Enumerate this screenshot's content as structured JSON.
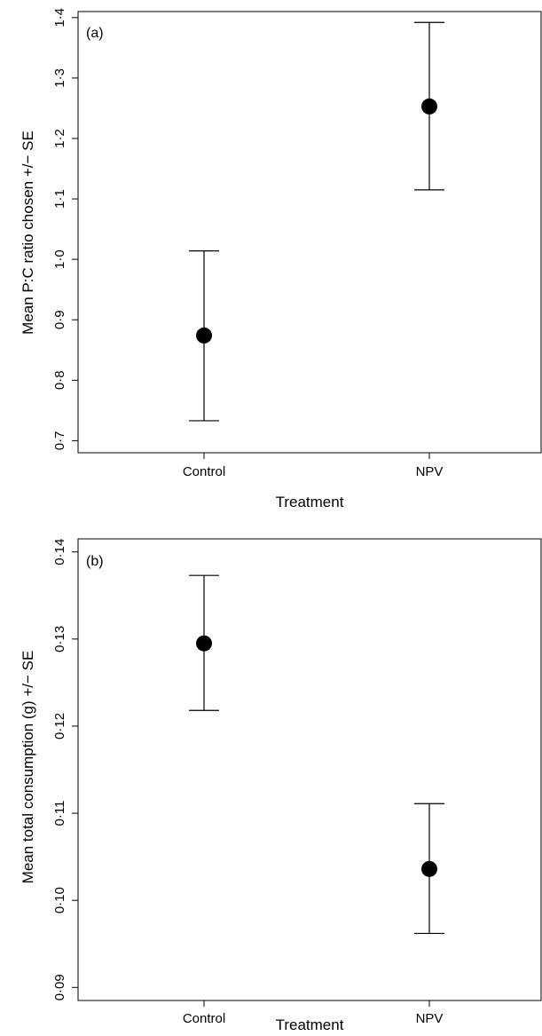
{
  "chart_data": [
    {
      "type": "scatter",
      "panel_label": "(a)",
      "categories": [
        "Control",
        "NPV"
      ],
      "values": [
        0.874,
        1.253
      ],
      "error_low": [
        0.733,
        1.115
      ],
      "error_high": [
        1.014,
        1.392
      ],
      "xlabel": "Treatment",
      "ylabel": "Mean P:C ratio chosen +/− SE",
      "ylim": [
        0.68,
        1.41
      ],
      "yticks": [
        0.7,
        0.8,
        0.9,
        1.0,
        1.1,
        1.2,
        1.3,
        1.4
      ],
      "ytick_labels": [
        "0·7",
        "0·8",
        "0·9",
        "1·0",
        "1·1",
        "1·2",
        "1·3",
        "1·4"
      ],
      "grid": false,
      "marker_color": "#000000"
    },
    {
      "type": "scatter",
      "panel_label": "(b)",
      "categories": [
        "Control",
        "NPV"
      ],
      "values": [
        0.1295,
        0.1036
      ],
      "error_low": [
        0.1218,
        0.0962
      ],
      "error_high": [
        0.1373,
        0.1111
      ],
      "xlabel": "Treatment",
      "ylabel": "Mean total consumption (g) +/− SE",
      "ylim": [
        0.0885,
        0.1415
      ],
      "yticks": [
        0.09,
        0.1,
        0.11,
        0.12,
        0.13,
        0.14
      ],
      "ytick_labels": [
        "0·09",
        "0·10",
        "0·11",
        "0·12",
        "0·13",
        "0·14"
      ],
      "grid": false,
      "marker_color": "#000000"
    }
  ]
}
